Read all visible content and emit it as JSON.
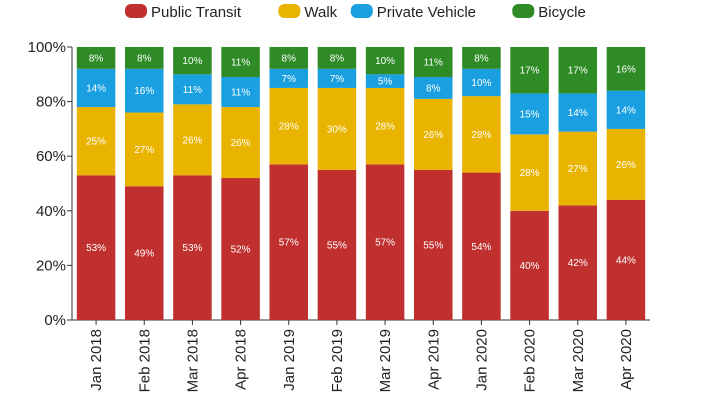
{
  "chart_data": {
    "type": "bar",
    "stacked": true,
    "percent_stacked": true,
    "categories": [
      "Jan 2018",
      "Feb 2018",
      "Mar 2018",
      "Apr 2018",
      "Jan 2019",
      "Feb 2019",
      "Mar 2019",
      "Apr 2019",
      "Jan 2020",
      "Feb 2020",
      "Mar 2020",
      "Apr 2020"
    ],
    "series": [
      {
        "name": "Public Transit",
        "color": "#c0302f",
        "values": [
          53,
          49,
          53,
          52,
          57,
          55,
          57,
          55,
          54,
          40,
          42,
          44
        ]
      },
      {
        "name": "Walk",
        "color": "#e8b400",
        "values": [
          25,
          27,
          26,
          26,
          28,
          30,
          28,
          26,
          28,
          28,
          27,
          26
        ]
      },
      {
        "name": "Private Vehicle",
        "color": "#1a9fe0",
        "values": [
          14,
          16,
          11,
          11,
          7,
          7,
          5,
          8,
          10,
          15,
          14,
          14
        ]
      },
      {
        "name": "Bicycle",
        "color": "#2e8b25",
        "values": [
          8,
          8,
          10,
          11,
          8,
          8,
          10,
          11,
          8,
          17,
          17,
          16
        ]
      }
    ],
    "data_label_suffix": "%",
    "y_ticks": [
      "0%",
      "20%",
      "40%",
      "60%",
      "80%",
      "100%"
    ],
    "ylim": [
      0,
      100
    ],
    "title": "",
    "xlabel": "",
    "ylabel": "",
    "legend_position": "top-center",
    "grid": false
  }
}
